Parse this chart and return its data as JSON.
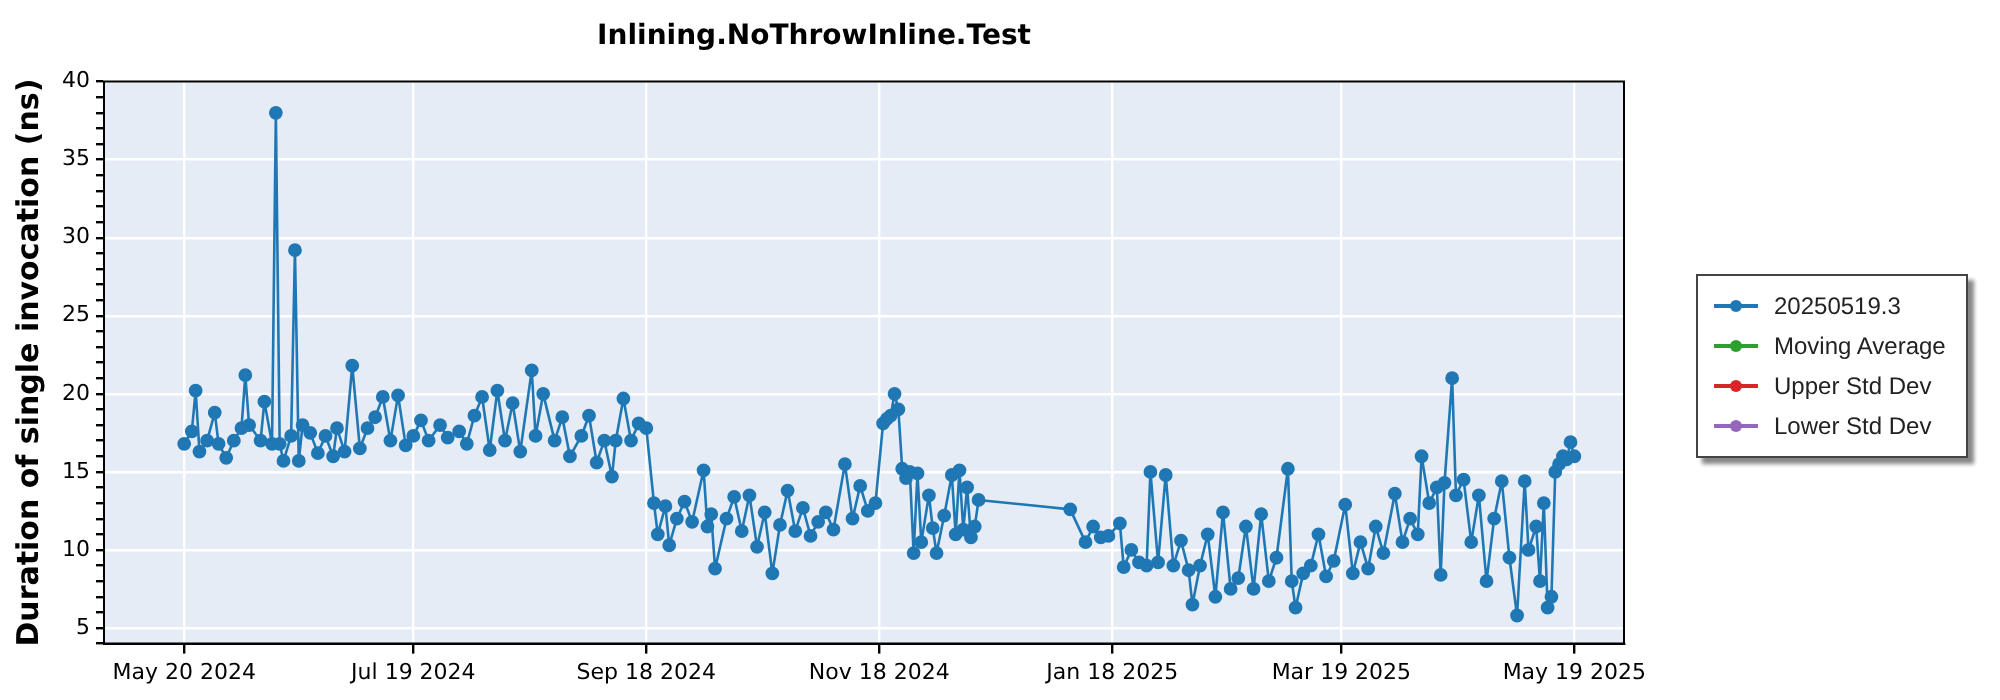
{
  "chart_data": {
    "type": "line",
    "title": "Inlining.NoThrowInline.Test",
    "ylabel": "Duration of single invocation (ns)",
    "xlim": [
      "2024-04-29",
      "2025-06-01"
    ],
    "xticks": [
      {
        "value": "2024-05-20",
        "label": "May 20 2024"
      },
      {
        "value": "2024-07-19",
        "label": "Jul 19 2024"
      },
      {
        "value": "2024-09-18",
        "label": "Sep 18 2024"
      },
      {
        "value": "2024-11-18",
        "label": "Nov 18 2024"
      },
      {
        "value": "2025-01-18",
        "label": "Jan 18 2025"
      },
      {
        "value": "2025-03-19",
        "label": "Mar 19 2025"
      },
      {
        "value": "2025-05-19",
        "label": "May 19 2025"
      }
    ],
    "ylim": [
      4,
      40
    ],
    "yticks": [
      {
        "value": 4,
        "label": null
      },
      5,
      {
        "value": 6,
        "label": null
      },
      {
        "value": 7,
        "label": null
      },
      {
        "value": 8,
        "label": null
      },
      {
        "value": 9,
        "label": null
      },
      10,
      {
        "value": 11,
        "label": null
      },
      {
        "value": 12,
        "label": null
      },
      {
        "value": 13,
        "label": null
      },
      {
        "value": 14,
        "label": null
      },
      15,
      {
        "value": 16,
        "label": null
      },
      {
        "value": 17,
        "label": null
      },
      {
        "value": 18,
        "label": null
      },
      {
        "value": 19,
        "label": null
      },
      20,
      {
        "value": 21,
        "label": null
      },
      {
        "value": 22,
        "label": null
      },
      {
        "value": 23,
        "label": null
      },
      {
        "value": 24,
        "label": null
      },
      25,
      {
        "value": 26,
        "label": null
      },
      {
        "value": 27,
        "label": null
      },
      {
        "value": 28,
        "label": null
      },
      {
        "value": 29,
        "label": null
      },
      30,
      {
        "value": 31,
        "label": null
      },
      {
        "value": 32,
        "label": null
      },
      {
        "value": 33,
        "label": null
      },
      {
        "value": 34,
        "label": null
      },
      35,
      {
        "value": 36,
        "label": null
      },
      {
        "value": 37,
        "label": null
      },
      {
        "value": 38,
        "label": null
      },
      {
        "value": 39,
        "label": null
      },
      40
    ],
    "grid": true,
    "legend": "right",
    "marker": "circle",
    "line_style": "solid",
    "series": [
      {
        "name": "20250519.3",
        "color": "#1f77b4",
        "x": [
          "2024-05-20",
          "2024-05-22",
          "2024-05-23",
          "2024-05-24",
          "2024-05-26",
          "2024-05-28",
          "2024-05-29",
          "2024-05-31",
          "2024-06-02",
          "2024-06-04",
          "2024-06-05",
          "2024-06-06",
          "2024-06-09",
          "2024-06-10",
          "2024-06-12",
          "2024-06-13",
          "2024-06-14",
          "2024-06-15",
          "2024-06-17",
          "2024-06-18",
          "2024-06-19",
          "2024-06-20",
          "2024-06-22",
          "2024-06-24",
          "2024-06-26",
          "2024-06-28",
          "2024-06-29",
          "2024-07-01",
          "2024-07-03",
          "2024-07-05",
          "2024-07-07",
          "2024-07-09",
          "2024-07-11",
          "2024-07-13",
          "2024-07-15",
          "2024-07-17",
          "2024-07-19",
          "2024-07-21",
          "2024-07-23",
          "2024-07-26",
          "2024-07-28",
          "2024-07-31",
          "2024-08-02",
          "2024-08-04",
          "2024-08-06",
          "2024-08-08",
          "2024-08-10",
          "2024-08-12",
          "2024-08-14",
          "2024-08-16",
          "2024-08-19",
          "2024-08-20",
          "2024-08-22",
          "2024-08-25",
          "2024-08-27",
          "2024-08-29",
          "2024-09-01",
          "2024-09-03",
          "2024-09-05",
          "2024-09-07",
          "2024-09-09",
          "2024-09-10",
          "2024-09-12",
          "2024-09-14",
          "2024-09-16",
          "2024-09-18",
          "2024-09-20",
          "2024-09-21",
          "2024-09-23",
          "2024-09-24",
          "2024-09-26",
          "2024-09-28",
          "2024-09-30",
          "2024-10-03",
          "2024-10-04",
          "2024-10-05",
          "2024-10-06",
          "2024-10-09",
          "2024-10-11",
          "2024-10-13",
          "2024-10-15",
          "2024-10-17",
          "2024-10-19",
          "2024-10-21",
          "2024-10-23",
          "2024-10-25",
          "2024-10-27",
          "2024-10-29",
          "2024-10-31",
          "2024-11-02",
          "2024-11-04",
          "2024-11-06",
          "2024-11-09",
          "2024-11-11",
          "2024-11-13",
          "2024-11-15",
          "2024-11-17",
          "2024-11-19",
          "2024-11-20",
          "2024-11-21",
          "2024-11-22",
          "2024-11-23",
          "2024-11-24",
          "2024-11-25",
          "2024-11-26",
          "2024-11-27",
          "2024-11-28",
          "2024-11-29",
          "2024-12-01",
          "2024-12-02",
          "2024-12-03",
          "2024-12-05",
          "2024-12-07",
          "2024-12-08",
          "2024-12-09",
          "2024-12-10",
          "2024-12-11",
          "2024-12-12",
          "2024-12-13",
          "2024-12-14",
          "2025-01-07",
          "2025-01-11",
          "2025-01-13",
          "2025-01-15",
          "2025-01-17",
          "2025-01-20",
          "2025-01-21",
          "2025-01-23",
          "2025-01-25",
          "2025-01-27",
          "2025-01-28",
          "2025-01-30",
          "2025-02-01",
          "2025-02-03",
          "2025-02-05",
          "2025-02-07",
          "2025-02-08",
          "2025-02-10",
          "2025-02-12",
          "2025-02-14",
          "2025-02-16",
          "2025-02-18",
          "2025-02-20",
          "2025-02-22",
          "2025-02-24",
          "2025-02-26",
          "2025-02-28",
          "2025-03-02",
          "2025-03-05",
          "2025-03-06",
          "2025-03-07",
          "2025-03-09",
          "2025-03-11",
          "2025-03-13",
          "2025-03-15",
          "2025-03-17",
          "2025-03-20",
          "2025-03-22",
          "2025-03-24",
          "2025-03-26",
          "2025-03-28",
          "2025-03-30",
          "2025-04-02",
          "2025-04-04",
          "2025-04-06",
          "2025-04-08",
          "2025-04-09",
          "2025-04-11",
          "2025-04-13",
          "2025-04-14",
          "2025-04-15",
          "2025-04-17",
          "2025-04-18",
          "2025-04-20",
          "2025-04-22",
          "2025-04-24",
          "2025-04-26",
          "2025-04-28",
          "2025-04-30",
          "2025-05-02",
          "2025-05-04",
          "2025-05-06",
          "2025-05-07",
          "2025-05-09",
          "2025-05-10",
          "2025-05-11",
          "2025-05-12",
          "2025-05-13",
          "2025-05-14",
          "2025-05-15",
          "2025-05-16",
          "2025-05-17",
          "2025-05-18",
          "2025-05-19"
        ],
        "values": [
          16.8,
          17.6,
          20.2,
          16.3,
          17.0,
          18.8,
          16.8,
          15.9,
          17.0,
          17.8,
          21.2,
          18.0,
          17.0,
          19.5,
          16.8,
          38.0,
          16.8,
          15.7,
          17.3,
          29.2,
          15.7,
          18.0,
          17.5,
          16.2,
          17.3,
          16.0,
          17.8,
          16.3,
          21.8,
          16.5,
          17.8,
          18.5,
          19.8,
          17.0,
          19.9,
          16.7,
          17.3,
          18.3,
          17.0,
          18.0,
          17.2,
          17.6,
          16.8,
          18.6,
          19.8,
          16.4,
          20.2,
          17.0,
          19.4,
          16.3,
          21.5,
          17.3,
          20.0,
          17.0,
          18.5,
          16.0,
          17.3,
          18.6,
          15.6,
          17.0,
          14.7,
          17.0,
          19.7,
          17.0,
          18.1,
          17.8,
          13.0,
          11.0,
          12.8,
          10.3,
          12.0,
          13.1,
          11.8,
          15.1,
          11.5,
          12.3,
          8.8,
          12.0,
          13.4,
          11.2,
          13.5,
          10.2,
          12.4,
          8.5,
          11.6,
          13.8,
          11.2,
          12.7,
          10.9,
          11.8,
          12.4,
          11.3,
          15.5,
          12.0,
          14.1,
          12.5,
          13.0,
          18.1,
          18.4,
          18.6,
          20.0,
          19.0,
          15.2,
          14.6,
          15.0,
          9.8,
          14.9,
          10.5,
          13.5,
          11.4,
          9.8,
          12.2,
          14.8,
          11.0,
          15.1,
          11.3,
          14.0,
          10.8,
          11.5,
          13.2,
          12.6,
          10.5,
          11.5,
          10.8,
          10.9,
          11.7,
          8.9,
          10.0,
          9.2,
          9.0,
          15.0,
          9.2,
          14.8,
          9.0,
          10.6,
          8.7,
          6.5,
          9.0,
          11.0,
          7.0,
          12.4,
          7.5,
          8.2,
          11.5,
          7.5,
          12.3,
          8.0,
          9.5,
          15.2,
          8.0,
          6.3,
          8.5,
          9.0,
          11.0,
          8.3,
          9.3,
          12.9,
          8.5,
          10.5,
          8.8,
          11.5,
          9.8,
          13.6,
          10.5,
          12.0,
          11.0,
          16.0,
          13.0,
          14.0,
          8.4,
          14.3,
          21.0,
          13.5,
          14.5,
          10.5,
          13.5,
          8.0,
          12.0,
          14.4,
          9.5,
          5.8,
          14.4,
          10.0,
          11.5,
          8.0,
          13.0,
          6.3,
          7.0,
          15.0,
          15.5,
          16.0,
          15.8,
          16.9,
          16.0
        ]
      },
      {
        "name": "Moving Average",
        "color": "#2ca02c"
      },
      {
        "name": "Upper Std Dev",
        "color": "#d62728"
      },
      {
        "name": "Lower Std Dev",
        "color": "#9467bd"
      }
    ]
  }
}
